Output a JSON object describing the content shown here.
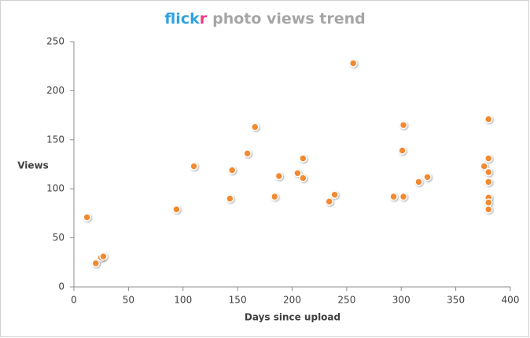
{
  "chart_data": {
    "type": "scatter",
    "title_parts": [
      {
        "text": "flick",
        "color": "#2fa3e0"
      },
      {
        "text": "r",
        "color": "#f0378a"
      },
      {
        "text": "photo views trend",
        "color": "#a6a6a6"
      }
    ],
    "xlabel": "Days since upload",
    "ylabel": "Views",
    "color": "#f28a30",
    "x": [
      12,
      20,
      25,
      27,
      94,
      110,
      143,
      145,
      159,
      166,
      184,
      188,
      205,
      210,
      210,
      234,
      239,
      256,
      293,
      302,
      301,
      302,
      316,
      324,
      376,
      380,
      380,
      380,
      380,
      380,
      380,
      380
    ],
    "values": [
      71,
      24,
      30,
      31,
      79,
      123,
      90,
      119,
      136,
      163,
      92,
      113,
      116,
      131,
      111,
      87,
      94,
      228,
      92,
      92,
      139,
      165,
      107,
      112,
      123,
      171,
      131,
      117,
      107,
      91,
      86,
      79
    ],
    "xlim": [
      0,
      400
    ],
    "xticks": [
      0,
      50,
      100,
      150,
      200,
      250,
      300,
      350,
      400
    ],
    "ylim": [
      0,
      250
    ],
    "yticks": [
      0,
      50,
      100,
      150,
      200,
      250
    ],
    "grid": false
  }
}
